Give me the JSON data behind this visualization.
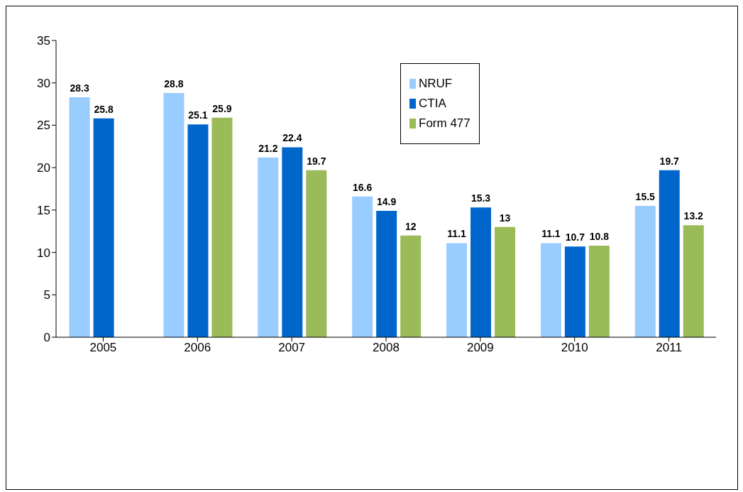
{
  "chart_data": {
    "type": "bar",
    "categories": [
      "2005",
      "2006",
      "2007",
      "2008",
      "2009",
      "2010",
      "2011"
    ],
    "series": [
      {
        "name": "NRUF",
        "color": "#99ccff",
        "values": [
          28.3,
          28.8,
          21.2,
          16.6,
          11.1,
          11.1,
          15.5
        ]
      },
      {
        "name": "CTIA",
        "color": "#0066cc",
        "values": [
          25.8,
          25.1,
          22.4,
          14.9,
          15.3,
          10.7,
          19.7
        ]
      },
      {
        "name": "Form 477",
        "color": "#9bbb59",
        "values": [
          null,
          25.9,
          19.7,
          12,
          13,
          10.8,
          13.2
        ]
      }
    ],
    "ylim": [
      0,
      35
    ],
    "yticks": [
      0,
      5,
      10,
      15,
      20,
      25,
      30,
      35
    ],
    "grid": false,
    "legend": "top",
    "data_labels": true
  }
}
